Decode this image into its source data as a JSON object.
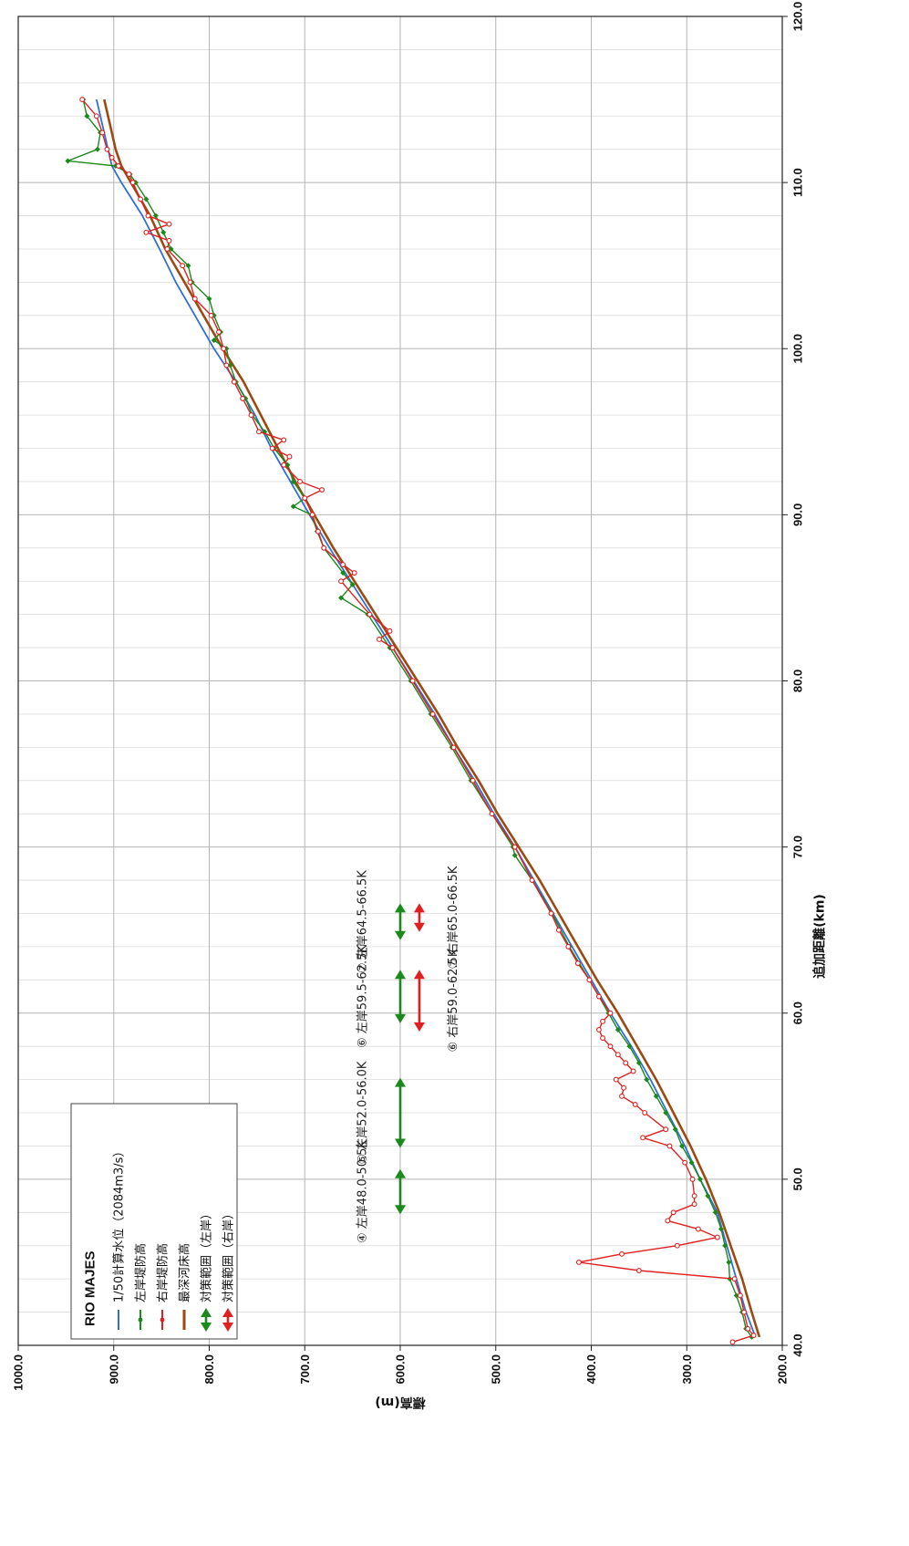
{
  "chart_data": {
    "type": "line",
    "orientation": "rotated-90-clockwise",
    "xlabel": "追加距離(km)",
    "ylabel": "標高(m)",
    "xlim": [
      40.0,
      120.0
    ],
    "ylim": [
      200.0,
      1000.0
    ],
    "x_ticks": [
      "40.0",
      "50.0",
      "60.0",
      "70.0",
      "80.0",
      "90.0",
      "100.0",
      "110.0",
      "120.0"
    ],
    "y_ticks": [
      "200.0",
      "300.0",
      "400.0",
      "500.0",
      "600.0",
      "700.0",
      "800.0",
      "900.0",
      "1000.0"
    ],
    "grid": true,
    "legend_position": "top-left",
    "legend_title": "RIO MAJES",
    "series": [
      {
        "name": "1/50計算水位（2084m3/s）",
        "color": "#2f6fd6",
        "x": [
          40.5,
          42,
          44,
          46,
          48,
          50,
          52,
          54,
          56,
          58,
          60,
          62,
          64,
          66,
          68,
          70,
          72,
          74,
          76,
          78,
          80,
          82,
          84,
          86,
          88,
          90,
          92,
          94,
          96,
          98,
          100,
          102,
          104,
          106,
          108,
          110,
          111,
          112,
          113,
          114,
          115
        ],
        "y": [
          228,
          238,
          248,
          258,
          268,
          286,
          302,
          320,
          338,
          358,
          380,
          400,
          420,
          440,
          460,
          480,
          502,
          522,
          544,
          564,
          586,
          608,
          630,
          652,
          674,
          695,
          715,
          735,
          752,
          772,
          795,
          815,
          835,
          852,
          870,
          892,
          902,
          906,
          910,
          914,
          918
        ]
      },
      {
        "name": "左岸堤防高",
        "color": "#1a8a1a",
        "x": [
          40.5,
          41,
          42,
          43,
          44,
          45,
          46,
          47,
          48,
          49,
          50,
          51,
          52,
          53,
          54,
          55,
          56,
          57,
          58,
          59,
          60,
          62,
          64,
          66,
          68,
          69.5,
          70,
          72,
          74,
          76,
          78,
          80,
          82,
          84,
          85,
          85.8,
          86.5,
          88,
          89,
          90,
          90.5,
          91,
          92,
          93,
          94,
          95,
          96,
          97,
          98,
          99,
          100,
          100.5,
          101,
          102,
          103,
          104,
          105,
          106,
          107,
          108,
          109,
          110,
          110.5,
          111,
          111.3,
          112,
          113,
          114,
          115
        ],
        "y": [
          232,
          238,
          242,
          248,
          255,
          256,
          260,
          264,
          270,
          278,
          286,
          295,
          305,
          312,
          322,
          332,
          342,
          350,
          360,
          372,
          382,
          402,
          423,
          441,
          462,
          480,
          482,
          504,
          526,
          546,
          568,
          589,
          611,
          634,
          662,
          650,
          660,
          680,
          687,
          693,
          712,
          700,
          712,
          718,
          732,
          742,
          755,
          762,
          772,
          778,
          782,
          795,
          788,
          795,
          800,
          818,
          822,
          840,
          848,
          856,
          866,
          877,
          883,
          898,
          948,
          917,
          914,
          928,
          932
        ]
      },
      {
        "name": "右岸堤防高",
        "color": "#e02020",
        "x": [
          40.2,
          40.6,
          41,
          42,
          43,
          44,
          44.5,
          45,
          45.5,
          46,
          46.5,
          47,
          47.5,
          48,
          48.5,
          49,
          50,
          51,
          52,
          52.5,
          53,
          54,
          54.5,
          55,
          55.5,
          56,
          56.5,
          57,
          57.5,
          58,
          58.5,
          59,
          59.5,
          60,
          61,
          62,
          63,
          64,
          65,
          66,
          68,
          70,
          72,
          74,
          76,
          78,
          80,
          82,
          82.5,
          83,
          84,
          86,
          86.5,
          87,
          88,
          89,
          90,
          91,
          91.5,
          92,
          93,
          93.5,
          94,
          94.5,
          95,
          96,
          97,
          98,
          99,
          100,
          101,
          102,
          103,
          104,
          105,
          106,
          106.5,
          107,
          107.5,
          108,
          109,
          110,
          110.5,
          111,
          111.5,
          112,
          113,
          114,
          115
        ],
        "y": [
          252,
          230,
          236,
          240,
          244,
          250,
          350,
          413,
          368,
          310,
          268,
          288,
          320,
          314,
          292,
          292,
          294,
          302,
          318,
          346,
          322,
          344,
          354,
          368,
          366,
          374,
          356,
          364,
          372,
          380,
          388,
          392,
          388,
          380,
          392,
          402,
          414,
          424,
          434,
          442,
          462,
          480,
          504,
          524,
          544,
          566,
          587,
          608,
          622,
          611,
          632,
          662,
          648,
          660,
          680,
          686,
          692,
          700,
          682,
          705,
          722,
          716,
          734,
          722,
          748,
          756,
          765,
          774,
          782,
          785,
          790,
          798,
          815,
          820,
          828,
          844,
          842,
          866,
          842,
          864,
          872,
          880,
          884,
          895,
          902,
          907,
          912,
          918,
          933
        ]
      },
      {
        "name": "最深河床高",
        "color": "#9c4a12",
        "x": [
          40.5,
          42,
          44,
          46,
          48,
          50,
          52,
          54,
          56,
          58,
          60,
          62,
          64,
          66,
          68,
          70,
          72,
          74,
          76,
          78,
          80,
          82,
          84,
          86,
          88,
          90,
          92,
          94,
          96,
          98,
          100,
          102,
          104,
          106,
          108,
          110,
          111,
          112,
          113,
          114,
          115
        ],
        "y": [
          224,
          232,
          242,
          254,
          266,
          280,
          296,
          314,
          332,
          352,
          372,
          394,
          414,
          434,
          454,
          476,
          498,
          518,
          540,
          560,
          582,
          604,
          626,
          648,
          670,
          690,
          710,
          728,
          746,
          764,
          786,
          806,
          826,
          846,
          862,
          882,
          892,
          898,
          902,
          906,
          910
        ]
      }
    ],
    "ranges": [
      {
        "side": "left",
        "color": "#1a8a1a",
        "x_from": 48.0,
        "x_to": 50.5,
        "y": 600.0,
        "label": "④ 左岸48.0-50.5K"
      },
      {
        "side": "left",
        "color": "#1a8a1a",
        "x_from": 52.0,
        "x_to": 56.0,
        "y": 600.0,
        "label": "⑤ 左岸52.0-56.0K"
      },
      {
        "side": "left",
        "color": "#1a8a1a",
        "x_from": 59.5,
        "x_to": 62.5,
        "y": 600.0,
        "label": "⑥ 左岸59.5-62.5K"
      },
      {
        "side": "left",
        "color": "#1a8a1a",
        "x_from": 64.5,
        "x_to": 66.5,
        "y": 600.0,
        "label": "⑦ 左岸64.5-66.5K"
      },
      {
        "side": "right",
        "color": "#e02020",
        "x_from": 59.0,
        "x_to": 62.5,
        "y": 580.0,
        "label": "⑥ 右岸59.0-62.5K"
      },
      {
        "side": "right",
        "color": "#e02020",
        "x_from": 65.0,
        "x_to": 66.5,
        "y": 580.0,
        "label": "⑦ 右岸65.0-66.5K"
      }
    ],
    "legend_items": [
      {
        "label": "1/50計算水位（2084m3/s）",
        "color": "#2f6fd6",
        "kind": "line"
      },
      {
        "label": "左岸堤防高",
        "color": "#1a8a1a",
        "kind": "line-marker"
      },
      {
        "label": "右岸堤防高",
        "color": "#e02020",
        "kind": "line-marker"
      },
      {
        "label": "最深河床高",
        "color": "#9c4a12",
        "kind": "thick-line"
      },
      {
        "label": "対策範囲（左岸）",
        "color": "#1a8a1a",
        "kind": "arrow"
      },
      {
        "label": "対策範囲（右岸）",
        "color": "#e02020",
        "kind": "arrow"
      }
    ]
  }
}
